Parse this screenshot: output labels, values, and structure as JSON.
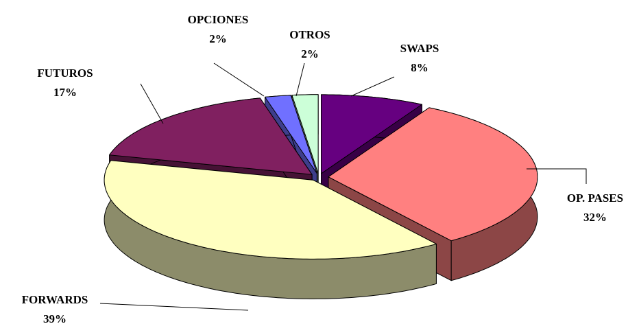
{
  "chart_data": {
    "type": "pie3d",
    "categories": [
      "SWAPS",
      "OP. PASES",
      "FORWARDS",
      "FUTUROS",
      "OPCIONES",
      "OTROS"
    ],
    "values": [
      8,
      32,
      39,
      17,
      2,
      2
    ],
    "value_labels": [
      "8%",
      "32%",
      "39%",
      "17%",
      "2%",
      "2%"
    ],
    "colors": [
      "#660080",
      "#ff8080",
      "#ffffc0",
      "#802060",
      "#7070ff",
      "#ccffd8"
    ]
  }
}
